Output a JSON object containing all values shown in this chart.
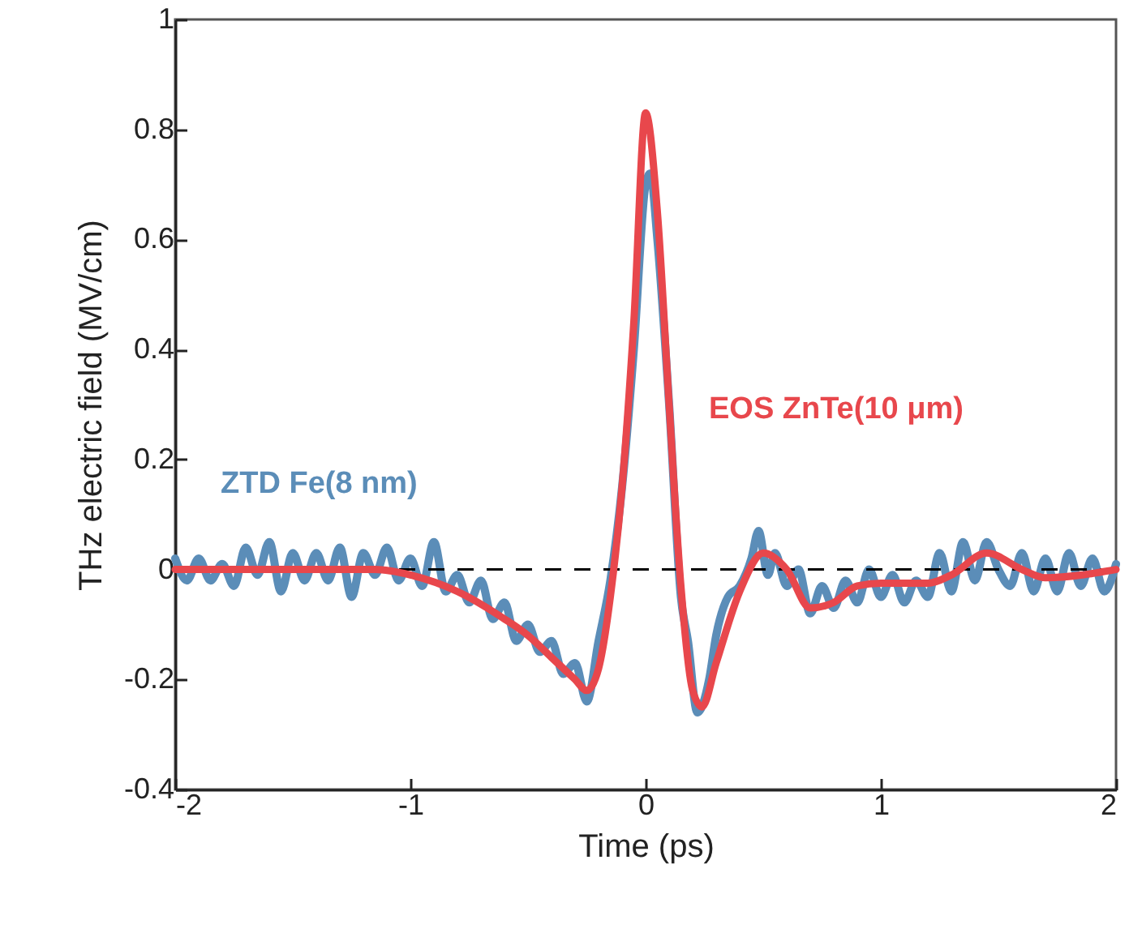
{
  "chart_data": {
    "type": "line",
    "xlabel": "Time (ps)",
    "ylabel": "THz electric field (MV/cm)",
    "xlim": [
      -2,
      2
    ],
    "xticks": [
      -2,
      -1,
      0,
      1,
      2
    ],
    "ylim": [
      -0.4,
      1
    ],
    "yticks": [
      -0.4,
      -0.2,
      0,
      0.2,
      0.4,
      0.6,
      0.8,
      1
    ],
    "grid": false,
    "legend": false,
    "marker": "none",
    "line_style": "solid",
    "ref_lines": [
      {
        "axis": "y",
        "value": 0,
        "color": "#000000",
        "line_style": "dashed"
      }
    ],
    "series": [
      {
        "name": "ZTD Fe(8 nm)",
        "color": "#5b8db8",
        "x": [
          -2,
          -1.95,
          -1.9,
          -1.85,
          -1.8,
          -1.75,
          -1.7,
          -1.65,
          -1.6,
          -1.55,
          -1.5,
          -1.45,
          -1.4,
          -1.35,
          -1.3,
          -1.25,
          -1.2,
          -1.15,
          -1.1,
          -1.05,
          -1,
          -0.95,
          -0.9,
          -0.85,
          -0.8,
          -0.75,
          -0.7,
          -0.65,
          -0.6,
          -0.55,
          -0.5,
          -0.45,
          -0.4,
          -0.35,
          -0.3,
          -0.25,
          -0.2,
          -0.15,
          -0.1,
          -0.05,
          0,
          0.02,
          0.05,
          0.1,
          0.15,
          0.18,
          0.22,
          0.27,
          0.3,
          0.35,
          0.4,
          0.45,
          0.48,
          0.52,
          0.55,
          0.6,
          0.65,
          0.7,
          0.75,
          0.8,
          0.85,
          0.9,
          0.95,
          1,
          1.05,
          1.1,
          1.15,
          1.2,
          1.25,
          1.3,
          1.35,
          1.4,
          1.45,
          1.5,
          1.55,
          1.6,
          1.65,
          1.7,
          1.75,
          1.8,
          1.85,
          1.9,
          1.95,
          2
        ],
        "values": [
          0.02,
          -0.02,
          0.02,
          -0.02,
          0.01,
          -0.03,
          0.04,
          -0.01,
          0.05,
          -0.04,
          0.03,
          -0.02,
          0.03,
          -0.02,
          0.04,
          -0.05,
          0.03,
          -0.01,
          0.04,
          -0.02,
          0.02,
          -0.03,
          0.05,
          -0.04,
          -0.01,
          -0.06,
          -0.02,
          -0.09,
          -0.06,
          -0.13,
          -0.1,
          -0.15,
          -0.13,
          -0.19,
          -0.17,
          -0.24,
          -0.13,
          -0.02,
          0.15,
          0.4,
          0.7,
          0.72,
          0.6,
          0.3,
          -0.05,
          -0.13,
          -0.26,
          -0.2,
          -0.12,
          -0.05,
          -0.03,
          0.02,
          0.07,
          -0.01,
          0.03,
          -0.03,
          0,
          -0.08,
          -0.03,
          -0.07,
          -0.02,
          -0.06,
          0,
          -0.05,
          -0.01,
          -0.06,
          -0.02,
          -0.05,
          0.03,
          -0.04,
          0.05,
          -0.02,
          0.05,
          0,
          -0.03,
          0.03,
          -0.04,
          0.02,
          -0.04,
          0.03,
          -0.03,
          0.02,
          -0.04,
          0.01
        ]
      },
      {
        "name": "EOS ZnTe(10 μm)",
        "color": "#e8474c",
        "x": [
          -2,
          -1.4,
          -1.15,
          -1,
          -0.8,
          -0.6,
          -0.5,
          -0.4,
          -0.3,
          -0.25,
          -0.2,
          -0.15,
          -0.1,
          -0.05,
          0,
          0.05,
          0.1,
          0.15,
          0.2,
          0.24,
          0.3,
          0.4,
          0.5,
          0.6,
          0.7,
          0.8,
          0.9,
          1,
          1.2,
          1.3,
          1.45,
          1.6,
          1.7,
          2
        ],
        "values": [
          0,
          0,
          0,
          -0.01,
          -0.04,
          -0.09,
          -0.12,
          -0.16,
          -0.2,
          -0.22,
          -0.18,
          -0.05,
          0.15,
          0.45,
          0.83,
          0.65,
          0.3,
          -0.03,
          -0.22,
          -0.25,
          -0.17,
          -0.04,
          0.03,
          0,
          -0.07,
          -0.06,
          -0.03,
          -0.025,
          -0.025,
          -0.01,
          0.03,
          0,
          -0.015,
          0
        ]
      }
    ]
  }
}
